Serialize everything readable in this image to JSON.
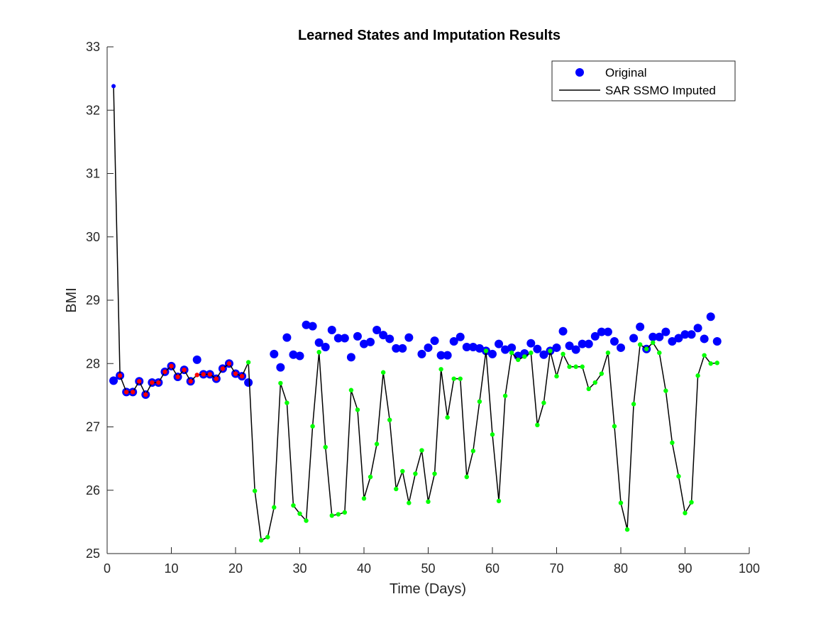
{
  "chart_data": {
    "type": "line",
    "title": "Learned States and Imputation Results",
    "xlabel": "Time (Days)",
    "ylabel": "BMI",
    "xlim": [
      0,
      100
    ],
    "ylim": [
      25,
      33
    ],
    "xticks": [
      0,
      10,
      20,
      30,
      40,
      50,
      60,
      70,
      80,
      90,
      100
    ],
    "yticks": [
      25,
      26,
      27,
      28,
      29,
      30,
      31,
      32,
      33
    ],
    "grid": false,
    "legend_position": "top-right",
    "legend": {
      "original": "Original",
      "imputed": "SAR SSMO Imputed"
    },
    "colors": {
      "original": "#0000ff",
      "imputed_line": "#000000",
      "state_a": "#ff0000",
      "state_b": "#00ff00",
      "axis": "#262626"
    },
    "series": [
      {
        "name": "Original",
        "x": [
          1,
          2,
          3,
          4,
          5,
          6,
          7,
          8,
          9,
          10,
          11,
          12,
          13,
          14,
          15,
          16,
          17,
          18,
          19,
          20,
          21,
          22,
          26,
          27,
          28,
          29,
          30,
          31,
          32,
          33,
          34,
          35,
          36,
          37,
          38,
          39,
          40,
          41,
          42,
          43,
          44,
          45,
          46,
          47,
          49,
          50,
          51,
          52,
          53,
          54,
          55,
          56,
          57,
          58,
          59,
          60,
          61,
          62,
          63,
          64,
          65,
          66,
          67,
          68,
          69,
          70,
          71,
          72,
          73,
          74,
          75,
          76,
          77,
          78,
          79,
          80,
          82,
          83,
          84,
          85,
          86,
          87,
          88,
          89,
          90,
          91,
          92,
          93,
          94,
          95
        ],
        "y": [
          27.73,
          27.81,
          27.55,
          27.55,
          27.72,
          27.51,
          27.7,
          27.7,
          27.87,
          27.96,
          27.79,
          27.9,
          27.72,
          28.06,
          27.83,
          27.83,
          27.76,
          27.92,
          28.0,
          27.84,
          27.8,
          27.7,
          28.15,
          27.94,
          28.41,
          28.14,
          28.12,
          28.61,
          28.59,
          28.33,
          28.26,
          28.53,
          28.4,
          28.4,
          28.1,
          28.43,
          28.31,
          28.34,
          28.53,
          28.45,
          28.39,
          28.24,
          28.24,
          28.41,
          28.15,
          28.25,
          28.36,
          28.13,
          28.13,
          28.35,
          28.42,
          28.26,
          28.26,
          28.24,
          28.2,
          28.15,
          28.31,
          28.22,
          28.25,
          28.12,
          28.16,
          28.32,
          28.23,
          28.14,
          28.2,
          28.25,
          28.51,
          28.28,
          28.22,
          28.31,
          28.31,
          28.43,
          28.5,
          28.5,
          28.35,
          28.25,
          28.4,
          28.58,
          28.23,
          28.42,
          28.42,
          28.5,
          28.35,
          28.4,
          28.46,
          28.46,
          28.56,
          28.39,
          28.74,
          28.35
        ]
      },
      {
        "name": "SAR SSMO Imputed",
        "x": [
          1,
          2,
          3,
          4,
          5,
          6,
          7,
          8,
          9,
          10,
          11,
          12,
          13,
          14,
          15,
          16,
          17,
          18,
          19,
          20,
          21,
          22,
          23,
          24,
          25,
          26,
          27,
          28,
          29,
          30,
          31,
          32,
          33,
          34,
          35,
          36,
          37,
          38,
          39,
          40,
          41,
          42,
          43,
          44,
          45,
          46,
          47,
          48,
          49,
          50,
          51,
          52,
          53,
          54,
          55,
          56,
          57,
          58,
          59,
          60,
          61,
          62,
          63,
          64,
          65,
          66,
          67,
          68,
          69,
          70,
          71,
          72,
          73,
          74,
          75,
          76,
          77,
          78,
          79,
          80,
          81,
          82,
          83,
          84,
          85,
          86,
          87,
          88,
          89,
          90,
          91,
          92,
          93,
          94,
          95
        ],
        "y": [
          32.38,
          27.81,
          27.55,
          27.55,
          27.72,
          27.51,
          27.7,
          27.7,
          27.87,
          27.96,
          27.79,
          27.9,
          27.72,
          27.82,
          27.83,
          27.83,
          27.76,
          27.92,
          28.0,
          27.84,
          27.8,
          28.02,
          25.99,
          25.21,
          25.26,
          25.73,
          27.69,
          27.38,
          25.76,
          25.63,
          25.52,
          27.01,
          28.18,
          26.68,
          25.6,
          25.62,
          25.65,
          27.58,
          27.27,
          25.87,
          26.21,
          26.73,
          27.86,
          27.11,
          26.02,
          26.3,
          25.8,
          26.26,
          26.63,
          25.82,
          26.26,
          27.91,
          27.15,
          27.76,
          27.76,
          26.21,
          26.62,
          27.4,
          28.2,
          26.88,
          25.83,
          27.49,
          28.17,
          28.06,
          28.11,
          28.17,
          27.03,
          27.38,
          28.2,
          27.8,
          28.15,
          27.95,
          27.95,
          27.95,
          27.6,
          27.7,
          27.84,
          28.17,
          27.01,
          25.8,
          25.38,
          27.36,
          28.3,
          28.23,
          28.33,
          28.17,
          27.57,
          26.75,
          26.22,
          25.64,
          25.81,
          27.81,
          28.13,
          28.0,
          28.01
        ]
      }
    ],
    "state_a_markers": {
      "x": [
        2,
        3,
        4,
        5,
        6,
        7,
        8,
        9,
        10,
        11,
        12,
        13,
        14,
        15,
        16,
        17,
        18,
        19,
        20,
        21
      ],
      "y": [
        27.81,
        27.55,
        27.55,
        27.72,
        27.51,
        27.7,
        27.7,
        27.87,
        27.96,
        27.79,
        27.9,
        27.72,
        27.82,
        27.83,
        27.83,
        27.76,
        27.92,
        28.0,
        27.84,
        27.8
      ]
    },
    "state_b_markers": {
      "x": [
        22,
        23,
        24,
        25,
        26,
        27,
        28,
        29,
        30,
        31,
        32,
        33,
        34,
        35,
        36,
        37,
        38,
        39,
        40,
        41,
        42,
        43,
        44,
        45,
        46,
        47,
        48,
        49,
        50,
        51,
        52,
        53,
        54,
        55,
        56,
        57,
        58,
        59,
        60,
        61,
        62,
        63,
        64,
        65,
        66,
        67,
        68,
        69,
        70,
        71,
        72,
        73,
        74,
        75,
        76,
        77,
        78,
        79,
        80,
        81,
        82,
        83,
        84,
        85,
        86,
        87,
        88,
        89,
        90,
        91,
        92,
        93,
        94,
        95
      ],
      "y": [
        28.02,
        25.99,
        25.21,
        25.26,
        25.73,
        27.69,
        27.38,
        25.76,
        25.63,
        25.52,
        27.01,
        28.18,
        26.68,
        25.6,
        25.62,
        25.65,
        27.58,
        27.27,
        25.87,
        26.21,
        26.73,
        27.86,
        27.11,
        26.02,
        26.3,
        25.8,
        26.26,
        26.63,
        25.82,
        26.26,
        27.91,
        27.15,
        27.76,
        27.76,
        26.21,
        26.62,
        27.4,
        28.2,
        26.88,
        25.83,
        27.49,
        28.17,
        28.06,
        28.11,
        28.17,
        27.03,
        27.38,
        28.2,
        27.8,
        28.15,
        27.95,
        27.95,
        27.95,
        27.6,
        27.7,
        27.84,
        28.17,
        27.01,
        25.8,
        25.38,
        27.36,
        28.3,
        28.23,
        28.33,
        28.17,
        27.57,
        26.75,
        26.22,
        25.64,
        25.81,
        27.81,
        28.13,
        28.0,
        28.01
      ]
    }
  }
}
